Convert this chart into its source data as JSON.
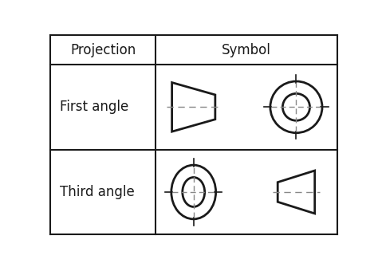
{
  "col1_header": "Projection",
  "col2_header": "Symbol",
  "row1_label": "First angle",
  "row2_label": "Third angle",
  "background": "#ffffff",
  "line_color": "#1a1a1a",
  "text_color": "#1a1a1a",
  "dash_color": "#888888",
  "table_line_color": "#1a1a1a",
  "crosshair_color": "#1a1a1a"
}
